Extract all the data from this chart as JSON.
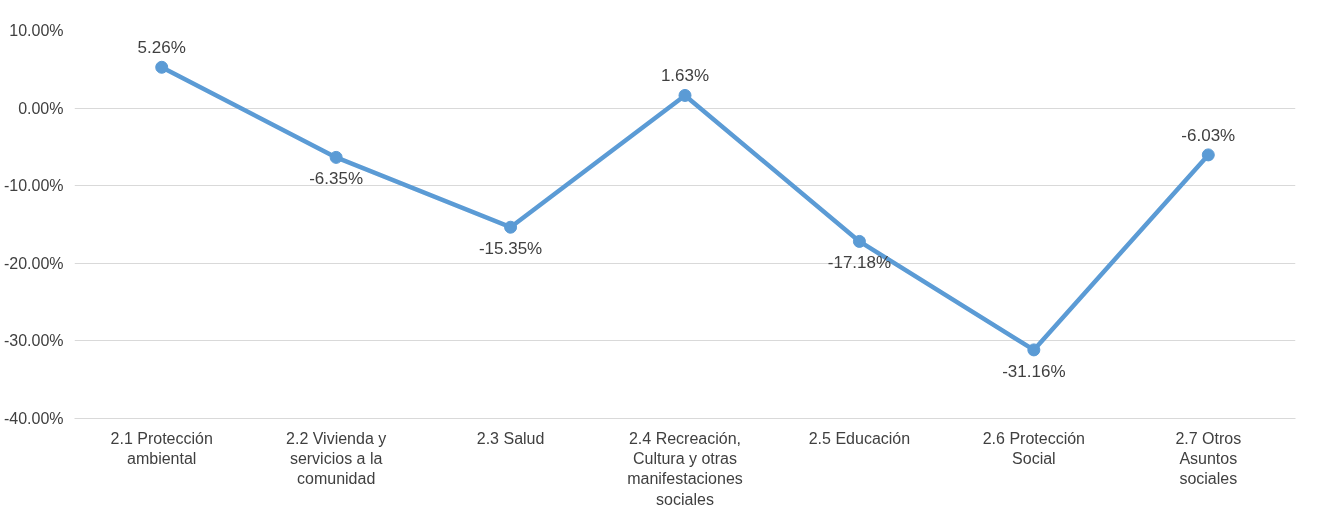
{
  "chart_data": {
    "type": "line",
    "categories": [
      "2.1 Protección ambiental",
      "2.2 Vivienda y servicios a la comunidad",
      "2.3 Salud",
      "2.4 Recreación, Cultura y otras manifestaciones sociales",
      "2.5 Educación",
      "2.6 Protección Social",
      "2.7 Otros Asuntos sociales"
    ],
    "series": [
      {
        "color": "#5b9bd5",
        "values": [
          5.26,
          -6.35,
          -15.35,
          1.63,
          -17.18,
          -31.16,
          -6.03
        ],
        "value_labels": [
          "5.26%",
          "-6.35%",
          "-15.35%",
          "1.63%",
          "-17.18%",
          "-31.16%",
          "-6.03%"
        ]
      }
    ],
    "ylim": [
      -40,
      10
    ],
    "yticks": [
      {
        "value": -40,
        "label": "-40.00%"
      },
      {
        "value": -30,
        "label": "-30.00%"
      },
      {
        "value": -20,
        "label": "-20.00%"
      },
      {
        "value": -10,
        "label": "-10.00%"
      },
      {
        "value": 0,
        "label": "0.00%"
      },
      {
        "value": 10,
        "label": "10.00%"
      }
    ],
    "grid": "y",
    "marker": "circle",
    "line_style": "solid"
  }
}
